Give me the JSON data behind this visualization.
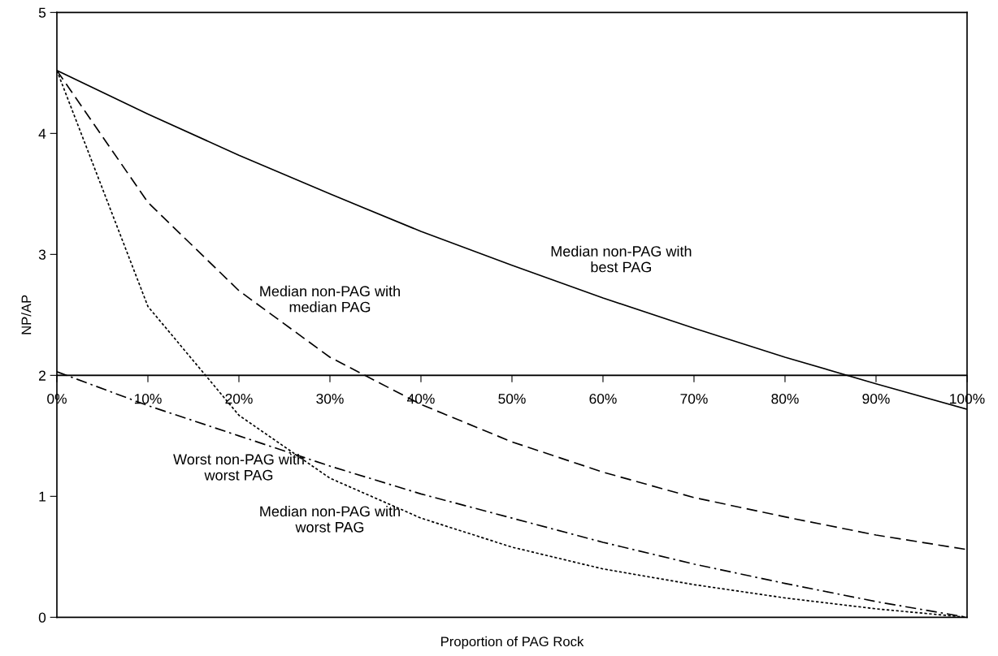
{
  "chart_data": {
    "type": "line",
    "xlabel": "Proportion of PAG Rock",
    "ylabel": "NP/AP",
    "x": [
      0,
      10,
      20,
      30,
      40,
      50,
      60,
      70,
      80,
      90,
      100
    ],
    "series": [
      {
        "name": "Median non-PAG with\nbest PAG",
        "color": "#000000",
        "line_style": "solid",
        "values": [
          4.52,
          4.16,
          3.82,
          3.5,
          3.19,
          2.91,
          2.64,
          2.39,
          2.15,
          1.93,
          1.72
        ]
      },
      {
        "name": "Median non-PAG with\nmedian PAG",
        "color": "#000000",
        "line_style": "dashed",
        "values": [
          4.52,
          3.43,
          2.7,
          2.15,
          1.76,
          1.45,
          1.2,
          0.99,
          0.83,
          0.68,
          0.56
        ]
      },
      {
        "name": "Median non-PAG with\nworst PAG",
        "color": "#000000",
        "line_style": "dotted",
        "values": [
          4.52,
          2.57,
          1.67,
          1.15,
          0.82,
          0.58,
          0.4,
          0.27,
          0.16,
          0.07,
          0.0
        ]
      },
      {
        "name": "Worst non-PAG with\nworst PAG",
        "color": "#000000",
        "line_style": "dashdot",
        "values": [
          2.03,
          1.75,
          1.5,
          1.25,
          1.02,
          0.82,
          0.62,
          0.44,
          0.28,
          0.13,
          0.0
        ]
      }
    ],
    "xlim": [
      0,
      100
    ],
    "xticks": [
      {
        "value": 0,
        "label": "0%"
      },
      {
        "value": 10,
        "label": "10%"
      },
      {
        "value": 20,
        "label": "20%"
      },
      {
        "value": 30,
        "label": "30%"
      },
      {
        "value": 40,
        "label": "40%"
      },
      {
        "value": 50,
        "label": "50%"
      },
      {
        "value": 60,
        "label": "60%"
      },
      {
        "value": 70,
        "label": "70%"
      },
      {
        "value": 80,
        "label": "80%"
      },
      {
        "value": 90,
        "label": "90%"
      },
      {
        "value": 100,
        "label": "100%"
      }
    ],
    "ylim": [
      0,
      5
    ],
    "yticks": [
      0,
      1,
      2,
      3,
      4,
      5
    ],
    "ref_lines": [
      {
        "axis": "y",
        "value": 2,
        "color": "#000000"
      }
    ],
    "grid": false,
    "legend": false
  }
}
